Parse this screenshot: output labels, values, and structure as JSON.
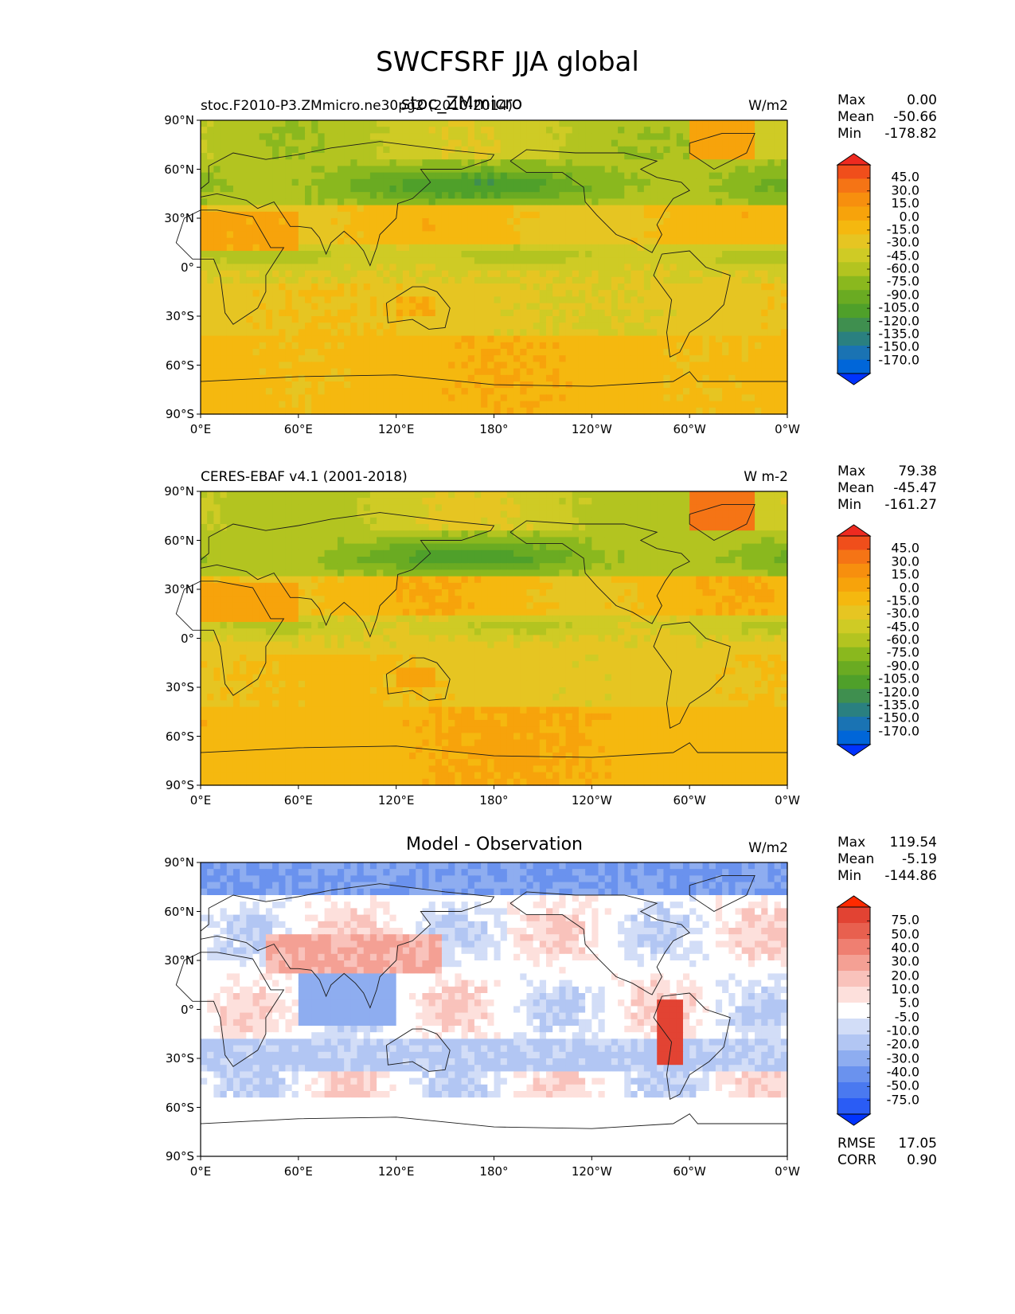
{
  "title": "SWCFSRF JJA global",
  "colors": {
    "main_ramp": [
      "#0033ff",
      "#0066d9",
      "#1a73b3",
      "#2a8080",
      "#3f8f4f",
      "#4fa02a",
      "#6aab22",
      "#8ab81e",
      "#b3c420",
      "#cfcb25",
      "#e6c522",
      "#f5b80f",
      "#f7a30b",
      "#f78f0e",
      "#f57415",
      "#f04e1b",
      "#ee2a20"
    ],
    "diff_ramp": [
      "#0033ff",
      "#2a5cf5",
      "#4a79f0",
      "#6a92ee",
      "#8eadf0",
      "#b2c6f3",
      "#d2ddf7",
      "#ffffff",
      "#fde0dc",
      "#f9c2bb",
      "#f4a094",
      "#ef7f71",
      "#e8604f",
      "#e24333",
      "#ff2a00"
    ]
  },
  "panels": [
    {
      "left_title": "stoc.F2010-P3.ZMmicro.ne30pg2 (2010-2014)",
      "center_title": "stoc_ZMmicro",
      "units": "W/m2",
      "stats": [
        {
          "label": "Max",
          "value": "0.00"
        },
        {
          "label": "Mean",
          "value": "-50.66"
        },
        {
          "label": "Min",
          "value": "-178.82"
        }
      ],
      "colorbar_labels": [
        "45.0",
        "30.0",
        "15.0",
        "0.0",
        "-15.0",
        "-30.0",
        "-45.0",
        "-60.0",
        "-75.0",
        "-90.0",
        "-105.0",
        "-120.0",
        "-135.0",
        "-150.0",
        "-170.0"
      ],
      "kind": "model"
    },
    {
      "left_title": "CERES-EBAF v4.1 (2001-2018)",
      "center_title": "",
      "units": "W m-2",
      "stats": [
        {
          "label": "Max",
          "value": "79.38"
        },
        {
          "label": "Mean",
          "value": "-45.47"
        },
        {
          "label": "Min",
          "value": "-161.27"
        }
      ],
      "colorbar_labels": [
        "45.0",
        "30.0",
        "15.0",
        "0.0",
        "-15.0",
        "-30.0",
        "-45.0",
        "-60.0",
        "-75.0",
        "-90.0",
        "-105.0",
        "-120.0",
        "-135.0",
        "-150.0",
        "-170.0"
      ],
      "kind": "obs"
    },
    {
      "left_title": "",
      "center_title": "Model - Observation",
      "units": "W/m2",
      "stats": [
        {
          "label": "Max",
          "value": "119.54"
        },
        {
          "label": "Mean",
          "value": "-5.19"
        },
        {
          "label": "Min",
          "value": "-144.86"
        }
      ],
      "colorbar_labels": [
        "75.0",
        "50.0",
        "40.0",
        "30.0",
        "20.0",
        "10.0",
        "5.0",
        "-5.0",
        "-10.0",
        "-20.0",
        "-30.0",
        "-40.0",
        "-50.0",
        "-75.0"
      ],
      "extra_stats": [
        {
          "label": "RMSE",
          "value": "17.05"
        },
        {
          "label": "CORR",
          "value": "0.90"
        }
      ],
      "kind": "diff"
    }
  ],
  "axes": {
    "lat_ticks": [
      "90°N",
      "60°N",
      "30°N",
      "0°",
      "30°S",
      "60°S",
      "90°S"
    ],
    "lon_ticks": [
      "0°E",
      "60°E",
      "120°E",
      "180°",
      "120°W",
      "60°W",
      "0°W"
    ]
  }
}
